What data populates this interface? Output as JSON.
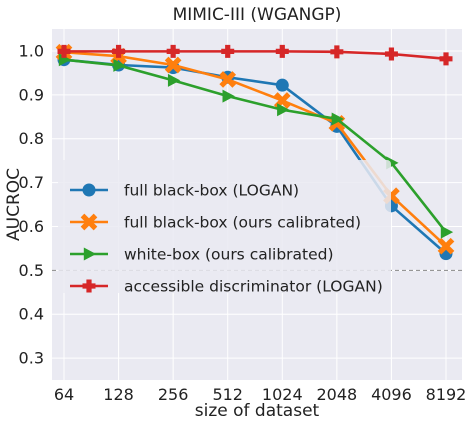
{
  "chart_data": {
    "type": "line",
    "title": "MIMIC-III (WGANGP)",
    "xlabel": "size of dataset",
    "ylabel": "AUCROC",
    "categories": [
      "64",
      "128",
      "256",
      "512",
      "1024",
      "2048",
      "4096",
      "8192"
    ],
    "ylim": [
      0.25,
      1.05
    ],
    "yticks": [
      0.3,
      0.4,
      0.5,
      0.6,
      0.7,
      0.8,
      0.9,
      1.0
    ],
    "ytick_labels": [
      "0.3",
      "0.4",
      "0.5",
      "0.6",
      "0.7",
      "0.8",
      "0.9",
      "1.0"
    ],
    "grid": true,
    "legend_position": "lower-left",
    "reference_line": {
      "y": 0.5,
      "style": "dashed",
      "color": "#888888"
    },
    "series": [
      {
        "name": "full black-box (LOGAN)",
        "color": "#1f77b4",
        "marker": "circle",
        "values": [
          0.98,
          0.968,
          0.962,
          0.94,
          0.922,
          0.828,
          0.647,
          0.538
        ]
      },
      {
        "name": "full black-box (ours calibrated)",
        "color": "#ff7f0e",
        "marker": "x",
        "values": [
          0.997,
          0.988,
          0.968,
          0.935,
          0.887,
          0.835,
          0.67,
          0.555
        ]
      },
      {
        "name": "white-box (ours calibrated)",
        "color": "#2ca02c",
        "marker": "triangle-right",
        "values": [
          0.98,
          0.967,
          0.933,
          0.897,
          0.866,
          0.845,
          0.745,
          0.587
        ]
      },
      {
        "name": "accessible discriminator (LOGAN)",
        "color": "#d62728",
        "marker": "plus",
        "values": [
          0.999,
          0.999,
          0.999,
          0.999,
          0.999,
          0.998,
          0.993,
          0.982
        ]
      }
    ]
  }
}
